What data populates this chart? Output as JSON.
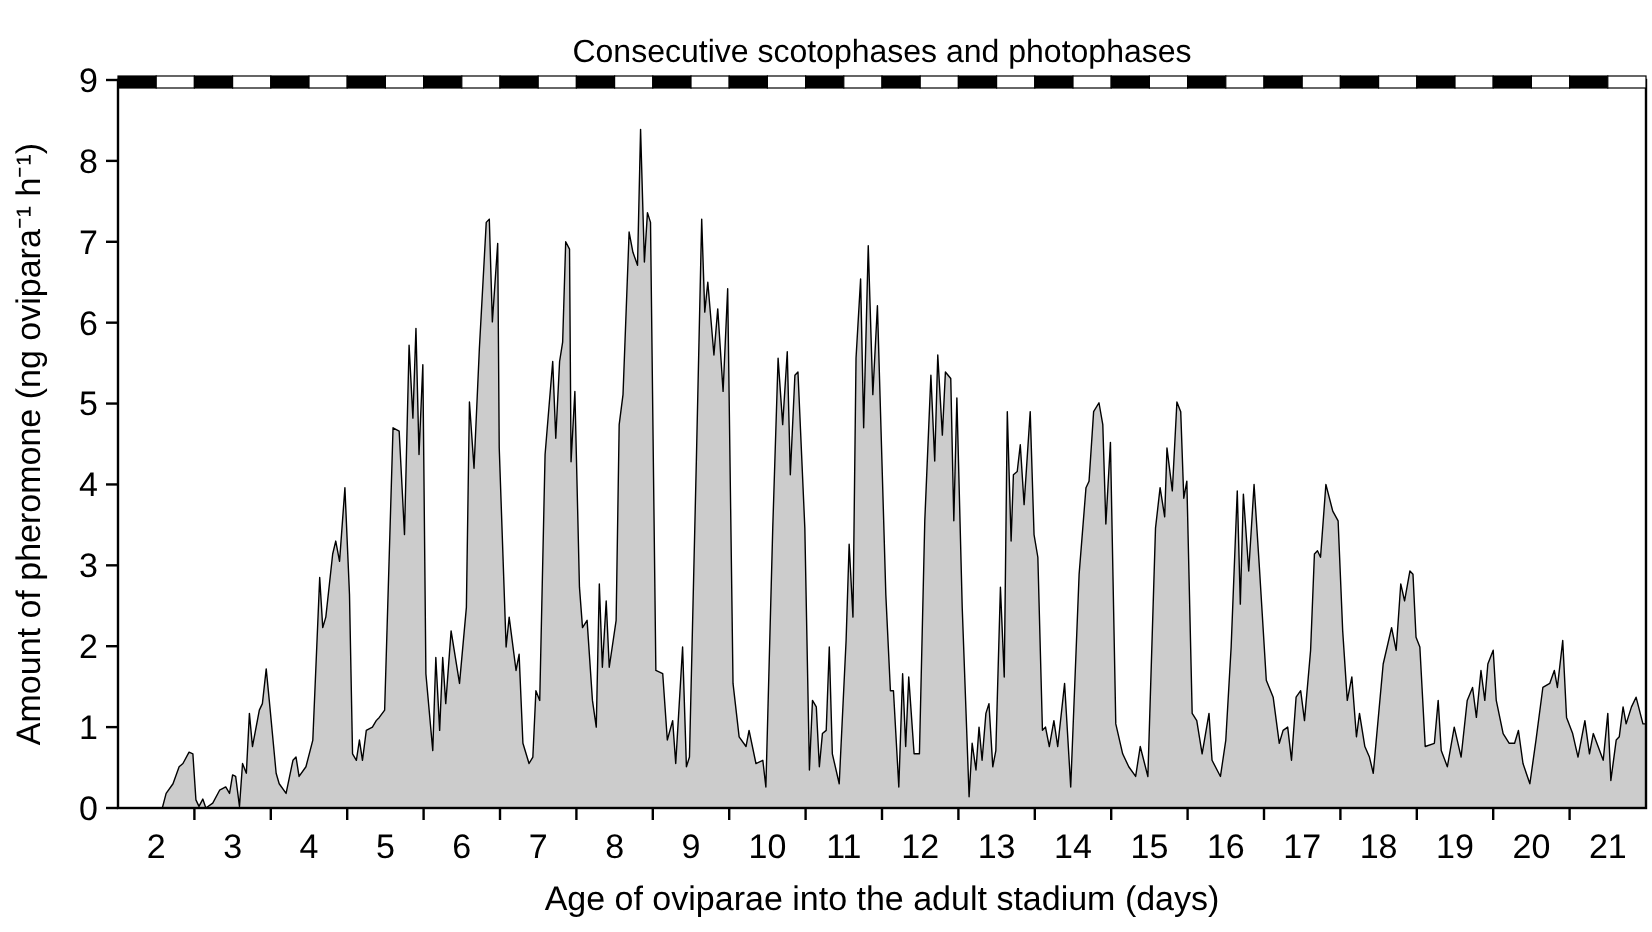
{
  "chart_data": {
    "type": "area",
    "title": "Consecutive scotophases and photophases",
    "xlabel": "Age of oviparae into the adult stadium (days)",
    "ylabel": "Amount of pheromone (ng ovipara⁻¹ h⁻¹)",
    "xlim": [
      1.5,
      21.5
    ],
    "ylim": [
      0,
      9
    ],
    "yticks": [
      0,
      1,
      2,
      3,
      4,
      5,
      6,
      7,
      8,
      9
    ],
    "xticks": [
      {
        "value": 2,
        "label": "2"
      },
      {
        "value": 3,
        "label": "3"
      },
      {
        "value": 4,
        "label": "4"
      },
      {
        "value": 5,
        "label": "5"
      },
      {
        "value": 6,
        "label": "6"
      },
      {
        "value": 7,
        "label": "7"
      },
      {
        "value": 8,
        "label": "8"
      },
      {
        "value": 9,
        "label": "9"
      },
      {
        "value": 10,
        "label": "10"
      },
      {
        "value": 11,
        "label": "11"
      },
      {
        "value": 12,
        "label": "12"
      },
      {
        "value": 13,
        "label": "13"
      },
      {
        "value": 14,
        "label": "14"
      },
      {
        "value": 15,
        "label": "15"
      },
      {
        "value": 16,
        "label": "16"
      },
      {
        "value": 17,
        "label": "17"
      },
      {
        "value": 18,
        "label": "18"
      },
      {
        "value": 19,
        "label": "19"
      },
      {
        "value": 20,
        "label": "20"
      },
      {
        "value": 21,
        "label": "21"
      },
      {
        "value": 2.5,
        "label": null
      },
      {
        "value": 3.5,
        "label": null
      },
      {
        "value": 4.5,
        "label": null
      },
      {
        "value": 5.5,
        "label": null
      },
      {
        "value": 6.5,
        "label": null
      },
      {
        "value": 7.5,
        "label": null
      },
      {
        "value": 8.5,
        "label": null
      },
      {
        "value": 9.5,
        "label": null
      },
      {
        "value": 10.5,
        "label": null
      },
      {
        "value": 11.5,
        "label": null
      },
      {
        "value": 12.5,
        "label": null
      },
      {
        "value": 13.5,
        "label": null
      },
      {
        "value": 14.5,
        "label": null
      },
      {
        "value": 15.5,
        "label": null
      },
      {
        "value": 16.5,
        "label": null
      },
      {
        "value": 17.5,
        "label": null
      },
      {
        "value": 18.5,
        "label": null
      },
      {
        "value": 19.5,
        "label": null
      },
      {
        "value": 20.5,
        "label": null
      }
    ],
    "grid": false,
    "series": [
      {
        "color": "#cccccc",
        "x": [
          2.08,
          2.13,
          2.22,
          2.3,
          2.35,
          2.43,
          2.48,
          2.52,
          2.56,
          2.61,
          2.65,
          2.74,
          2.83,
          2.91,
          2.96,
          3.0,
          3.04,
          3.09,
          3.13,
          3.18,
          3.22,
          3.26,
          3.35,
          3.39,
          3.44,
          3.48,
          3.57,
          3.61,
          3.7,
          3.79,
          3.83,
          3.87,
          3.96,
          4.05,
          4.14,
          4.18,
          4.22,
          4.31,
          4.35,
          4.4,
          4.47,
          4.53,
          4.57,
          4.62,
          4.66,
          4.7,
          4.75,
          4.83,
          4.88,
          4.92,
          4.99,
          5.1,
          5.18,
          5.25,
          5.31,
          5.36,
          5.4,
          5.44,
          5.49,
          5.53,
          5.62,
          5.66,
          5.71,
          5.75,
          5.79,
          5.86,
          5.97,
          6.06,
          6.1,
          6.16,
          6.23,
          6.32,
          6.36,
          6.4,
          6.47,
          6.49,
          6.58,
          6.62,
          6.71,
          6.75,
          6.8,
          6.88,
          6.93,
          6.97,
          7.02,
          7.09,
          7.19,
          7.23,
          7.28,
          7.32,
          7.36,
          7.41,
          7.43,
          7.48,
          7.54,
          7.58,
          7.64,
          7.71,
          7.76,
          7.8,
          7.84,
          7.89,
          7.93,
          8.02,
          8.06,
          8.11,
          8.19,
          8.24,
          8.3,
          8.34,
          8.39,
          8.43,
          8.47,
          8.54,
          8.63,
          8.69,
          8.76,
          8.8,
          8.89,
          8.94,
          8.98,
          9.07,
          9.14,
          9.18,
          9.22,
          9.3,
          9.35,
          9.42,
          9.48,
          9.55,
          9.63,
          9.72,
          9.76,
          9.85,
          9.94,
          9.98,
          10.07,
          10.14,
          10.2,
          10.26,
          10.3,
          10.36,
          10.4,
          10.49,
          10.55,
          10.59,
          10.64,
          10.68,
          10.72,
          10.77,
          10.81,
          10.85,
          10.94,
          11.03,
          11.07,
          11.12,
          11.16,
          11.22,
          11.26,
          11.32,
          11.38,
          11.44,
          11.55,
          11.61,
          11.65,
          11.72,
          11.77,
          11.81,
          11.85,
          11.92,
          11.99,
          12.06,
          12.14,
          12.19,
          12.23,
          12.29,
          12.33,
          12.4,
          12.44,
          12.48,
          12.55,
          12.64,
          12.68,
          12.73,
          12.77,
          12.81,
          12.86,
          12.9,
          12.95,
          12.99,
          13.05,
          13.1,
          13.14,
          13.19,
          13.22,
          13.27,
          13.31,
          13.36,
          13.44,
          13.49,
          13.54,
          13.6,
          13.64,
          13.69,
          13.75,
          13.8,
          13.89,
          13.97,
          14.08,
          14.17,
          14.21,
          14.27,
          14.34,
          14.39,
          14.43,
          14.49,
          14.56,
          14.65,
          14.73,
          14.82,
          14.88,
          14.98,
          15.08,
          15.14,
          15.2,
          15.23,
          15.3,
          15.36,
          15.41,
          15.45,
          15.49,
          15.56,
          15.62,
          15.69,
          15.78,
          15.82,
          15.93,
          16.0,
          16.07,
          16.15,
          16.19,
          16.23,
          16.3,
          16.37,
          16.44,
          16.53,
          16.62,
          16.7,
          16.75,
          16.81,
          16.86,
          16.92,
          16.98,
          17.03,
          17.11,
          17.16,
          17.2,
          17.24,
          17.31,
          17.4,
          17.47,
          17.53,
          17.59,
          17.65,
          17.71,
          17.75,
          17.82,
          17.88,
          17.93,
          18.06,
          18.17,
          18.23,
          18.29,
          18.34,
          18.41,
          18.45,
          18.49,
          18.54,
          18.61,
          18.73,
          18.78,
          18.82,
          18.9,
          18.99,
          19.08,
          19.16,
          19.23,
          19.28,
          19.34,
          19.39,
          19.43,
          19.5,
          19.54,
          19.63,
          19.71,
          19.78,
          19.83,
          19.89,
          19.98,
          20.06,
          20.15,
          20.24,
          20.3,
          20.34,
          20.41,
          20.46,
          20.54,
          20.61,
          20.7,
          20.76,
          20.81,
          20.94,
          21.0,
          21.04,
          21.11,
          21.15,
          21.2,
          21.24,
          21.31,
          21.37,
          21.46,
          21.5
        ],
        "values": [
          0,
          0.18,
          0.3,
          0.51,
          0.55,
          0.69,
          0.67,
          0.1,
          0.02,
          0.11,
          0,
          0.06,
          0.22,
          0.26,
          0.18,
          0.41,
          0.39,
          0.02,
          0.55,
          0.43,
          1.17,
          0.76,
          1.21,
          1.29,
          1.72,
          1.33,
          0.43,
          0.3,
          0.18,
          0.59,
          0.63,
          0.39,
          0.51,
          0.84,
          2.85,
          2.23,
          2.36,
          3.14,
          3.3,
          3.05,
          3.96,
          2.64,
          0.67,
          0.59,
          0.84,
          0.59,
          0.96,
          1.0,
          1.08,
          1.12,
          1.21,
          4.7,
          4.66,
          3.38,
          5.72,
          4.82,
          5.93,
          4.37,
          5.48,
          1.66,
          0.71,
          1.86,
          0.96,
          1.86,
          1.29,
          2.19,
          1.54,
          2.48,
          5.02,
          4.2,
          5.68,
          7.24,
          7.28,
          6.01,
          6.98,
          4.45,
          1.99,
          2.36,
          1.7,
          1.9,
          0.8,
          0.55,
          0.63,
          1.45,
          1.33,
          4.37,
          5.52,
          4.57,
          5.52,
          5.76,
          7.0,
          6.91,
          4.28,
          5.15,
          2.73,
          2.23,
          2.32,
          1.33,
          1.0,
          2.77,
          1.74,
          2.56,
          1.74,
          2.32,
          4.74,
          5.11,
          7.12,
          6.87,
          6.71,
          8.39,
          6.75,
          7.36,
          7.24,
          1.7,
          1.66,
          0.84,
          1.08,
          0.55,
          1.99,
          0.51,
          0.63,
          4.29,
          7.28,
          6.13,
          6.5,
          5.6,
          6.17,
          5.15,
          6.42,
          1.54,
          0.88,
          0.76,
          0.96,
          0.55,
          0.59,
          0.26,
          3.46,
          5.56,
          4.74,
          5.64,
          4.12,
          5.35,
          5.39,
          3.46,
          0.47,
          1.33,
          1.25,
          0.51,
          0.92,
          0.96,
          1.99,
          0.67,
          0.3,
          2.07,
          3.26,
          2.36,
          5.56,
          6.54,
          4.7,
          6.95,
          5.11,
          6.21,
          2.64,
          1.45,
          1.45,
          0.26,
          1.66,
          0.76,
          1.62,
          0.67,
          0.67,
          3.55,
          5.35,
          4.29,
          5.6,
          4.61,
          5.39,
          5.31,
          3.55,
          5.07,
          2.48,
          0.14,
          0.8,
          0.47,
          1.0,
          0.59,
          1.17,
          1.29,
          0.51,
          0.71,
          2.73,
          1.62,
          4.9,
          3.3,
          4.12,
          4.16,
          4.49,
          3.75,
          4.9,
          3.38,
          3.1,
          0.96,
          1.0,
          0.76,
          1.08,
          0.76,
          1.54,
          0.26,
          2.89,
          3.96,
          4.04,
          4.9,
          5.01,
          4.74,
          3.51,
          4.52,
          1.04,
          0.67,
          0.51,
          0.39,
          0.76,
          0.39,
          3.46,
          3.96,
          3.6,
          4.45,
          3.92,
          5.02,
          4.9,
          3.83,
          4.04,
          1.17,
          1.08,
          0.67,
          1.17,
          0.59,
          0.39,
          0.84,
          1.99,
          3.92,
          2.52,
          3.88,
          2.93,
          4.0,
          2.97,
          1.58,
          1.37,
          0.8,
          0.96,
          1.0,
          0.59,
          1.37,
          1.45,
          1.08,
          1.95,
          3.14,
          3.18,
          3.1,
          4.0,
          3.67,
          3.55,
          2.19,
          1.33,
          1.62,
          0.88,
          1.17,
          0.76,
          0.63,
          0.43,
          1.78,
          2.23,
          1.95,
          2.77,
          2.56,
          2.93,
          2.89,
          2.11,
          1.99,
          0.76,
          0.8,
          1.33,
          0.71,
          0.51,
          1.0,
          0.63,
          1.33,
          1.49,
          1.12,
          1.7,
          1.33,
          1.78,
          1.95,
          1.33,
          0.92,
          0.8,
          0.8,
          0.96,
          0.55,
          0.3,
          0.84,
          1.49,
          1.54,
          1.7,
          1.49,
          2.07,
          1.12,
          0.92,
          0.63,
          1.08,
          0.67,
          0.92,
          0.59,
          1.17,
          0.34,
          0.84,
          0.88,
          1.25,
          1.04,
          1.25,
          1.37,
          1.04,
          1.04
        ]
      }
    ]
  }
}
